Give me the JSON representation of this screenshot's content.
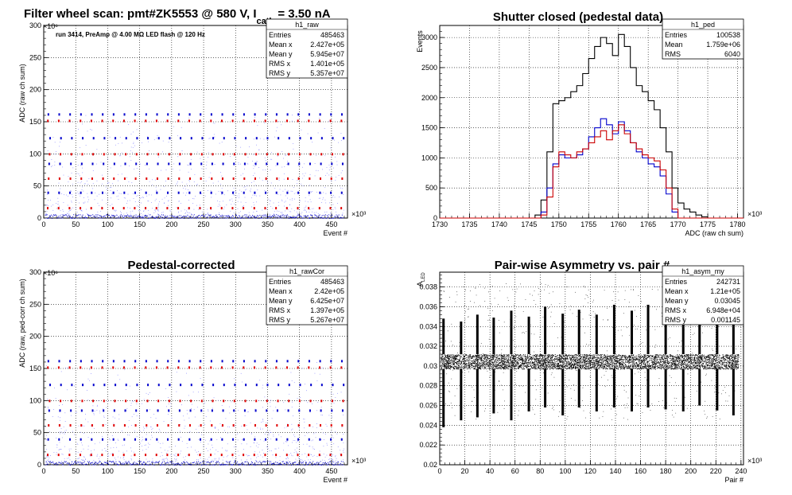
{
  "window": {
    "title": ""
  },
  "chart_data": [
    {
      "id": "raw",
      "type": "scatter",
      "title": "Filter wheel scan: pmt#ZK5553 @   580 V, I",
      "title_sub": "cath",
      "title_tail": " = 3.50 nA",
      "annotation": "run 3414, PreAmp @ 4.00 MΩ   LED flash @  120 Hz",
      "xlabel": "Event #",
      "ylabel": "ADC (raw ch sum)",
      "x_exp": "×10³",
      "y_exp": "×10⁶",
      "xlim": [
        0,
        475
      ],
      "ylim": [
        0,
        300
      ],
      "xticks": [
        0,
        50,
        100,
        150,
        200,
        250,
        300,
        350,
        400,
        450
      ],
      "yticks": [
        0,
        50,
        100,
        150,
        200,
        250,
        300
      ],
      "grid": true,
      "stats": {
        "name": "h1_raw",
        "rows": [
          [
            "Entries",
            "485463"
          ],
          [
            "Mean x",
            "2.427e+05"
          ],
          [
            "Mean y",
            "5.945e+07"
          ],
          [
            "RMS x",
            "1.401e+05"
          ],
          [
            "RMS y",
            "5.357e+07"
          ]
        ]
      },
      "levels": [
        0,
        16,
        40,
        62,
        85,
        100,
        125,
        152,
        162
      ],
      "period": 17,
      "colors": {
        "high": "#e00000",
        "low": "#0000cc",
        "dot": "#8080ff"
      }
    },
    {
      "id": "ped",
      "type": "line",
      "title": "Shutter closed (pedestal data)",
      "xlabel": "ADC (raw ch sum)",
      "ylabel": "Events",
      "x_exp": "×10³",
      "xlim": [
        1730,
        1781
      ],
      "ylim": [
        0,
        3200
      ],
      "xticks": [
        1730,
        1735,
        1740,
        1745,
        1750,
        1755,
        1760,
        1765,
        1770,
        1775,
        1780
      ],
      "yticks": [
        0,
        500,
        1000,
        1500,
        2000,
        2500,
        3000
      ],
      "grid": true,
      "stats": {
        "name": "h1_ped",
        "rows": [
          [
            "Entries",
            "100538"
          ],
          [
            "Mean",
            "1.759e+06"
          ],
          [
            "RMS",
            "6040"
          ]
        ]
      },
      "series": [
        {
          "color": "#000000",
          "x": [
            1730,
            1745,
            1746,
            1747,
            1748,
            1749,
            1750,
            1751,
            1752,
            1753,
            1754,
            1755,
            1756,
            1757,
            1758,
            1759,
            1760,
            1761,
            1762,
            1763,
            1764,
            1765,
            1766,
            1767,
            1768,
            1769,
            1770,
            1771,
            1772,
            1773,
            1774,
            1775,
            1781
          ],
          "y": [
            0,
            0,
            50,
            300,
            1100,
            1900,
            1950,
            2000,
            2100,
            2200,
            2400,
            2650,
            2850,
            3000,
            2900,
            2700,
            3050,
            2850,
            2500,
            2200,
            2100,
            1950,
            1800,
            1500,
            1100,
            500,
            250,
            150,
            100,
            50,
            20,
            0,
            0
          ]
        },
        {
          "color": "#0000cc",
          "x": [
            1730,
            1746,
            1747,
            1748,
            1749,
            1750,
            1751,
            1752,
            1753,
            1754,
            1755,
            1756,
            1757,
            1758,
            1759,
            1760,
            1761,
            1762,
            1763,
            1764,
            1765,
            1766,
            1767,
            1768,
            1769,
            1770,
            1781
          ],
          "y": [
            0,
            0,
            100,
            500,
            900,
            1050,
            1000,
            1000,
            1050,
            1150,
            1350,
            1500,
            1650,
            1550,
            1400,
            1600,
            1450,
            1250,
            1100,
            1000,
            900,
            850,
            700,
            400,
            100,
            0,
            0
          ]
        },
        {
          "color": "#cc0000",
          "x": [
            1730,
            1746,
            1747,
            1748,
            1749,
            1750,
            1751,
            1752,
            1753,
            1754,
            1755,
            1756,
            1757,
            1758,
            1759,
            1760,
            1761,
            1762,
            1763,
            1764,
            1765,
            1766,
            1767,
            1768,
            1769,
            1770,
            1781
          ],
          "y": [
            0,
            0,
            50,
            350,
            850,
            1100,
            1050,
            1000,
            1100,
            1150,
            1250,
            1350,
            1450,
            1300,
            1450,
            1550,
            1400,
            1250,
            1150,
            1050,
            1000,
            950,
            800,
            500,
            150,
            0,
            0
          ]
        }
      ]
    },
    {
      "id": "rawcor",
      "type": "scatter",
      "title": "Pedestal-corrected",
      "xlabel": "Event #",
      "ylabel": "ADC (raw, ped-corr ch sum)",
      "x_exp": "×10³",
      "y_exp": "×10⁶",
      "xlim": [
        0,
        475
      ],
      "ylim": [
        0,
        300
      ],
      "xticks": [
        0,
        50,
        100,
        150,
        200,
        250,
        300,
        350,
        400,
        450
      ],
      "yticks": [
        0,
        50,
        100,
        150,
        200,
        250,
        300
      ],
      "grid": true,
      "stats": {
        "name": "h1_rawCor",
        "rows": [
          [
            "Entries",
            "485463"
          ],
          [
            "Mean x",
            "2.42e+05"
          ],
          [
            "Mean y",
            "6.425e+07"
          ],
          [
            "RMS x",
            "1.397e+05"
          ],
          [
            "RMS y",
            "5.267e+07"
          ]
        ]
      },
      "levels": [
        0,
        16,
        40,
        62,
        85,
        100,
        125,
        152,
        162
      ],
      "period": 17,
      "colors": {
        "high": "#e00000",
        "low": "#0000cc",
        "dot": "#8080ff"
      }
    },
    {
      "id": "asym",
      "type": "scatter",
      "title": "Pair-wise Asymmetry vs. pair #",
      "xlabel": "Pair #",
      "ylabel": "A",
      "ylabel_sub": "LED",
      "x_exp": "×10³",
      "xlim": [
        0,
        242
      ],
      "ylim": [
        0.02,
        0.0395
      ],
      "xticks": [
        0,
        20,
        40,
        60,
        80,
        100,
        120,
        140,
        160,
        180,
        200,
        220,
        240
      ],
      "yticks": [
        0.02,
        0.022,
        0.024,
        0.026,
        0.028,
        0.03,
        0.032,
        0.034,
        0.036,
        0.038
      ],
      "grid": true,
      "stats": {
        "name": "h1_asym_my",
        "rows": [
          [
            "Entries",
            "242731"
          ],
          [
            "Mean x",
            "1.21e+05"
          ],
          [
            "Mean y",
            "0.03045"
          ],
          [
            "RMS x",
            "6.948e+04"
          ],
          [
            "RMS y",
            "0.001145"
          ]
        ]
      },
      "band": [
        0.0297,
        0.0312
      ],
      "spike_x": [
        3,
        17,
        30,
        43,
        57,
        71,
        84,
        98,
        111,
        125,
        139,
        153,
        166,
        180,
        194,
        207,
        221,
        234
      ],
      "spike_top": [
        0.0348,
        0.0345,
        0.0352,
        0.0349,
        0.0356,
        0.035,
        0.036,
        0.0353,
        0.0357,
        0.0352,
        0.0362,
        0.0356,
        0.0362,
        0.0356,
        0.036,
        0.0356,
        0.0358,
        0.0353
      ],
      "spike_bottom": [
        0.0238,
        0.0245,
        0.0248,
        0.0252,
        0.0245,
        0.0254,
        0.0258,
        0.025,
        0.0258,
        0.0254,
        0.0258,
        0.0254,
        0.0258,
        0.0256,
        0.0254,
        0.026,
        0.0255,
        0.025
      ]
    }
  ]
}
